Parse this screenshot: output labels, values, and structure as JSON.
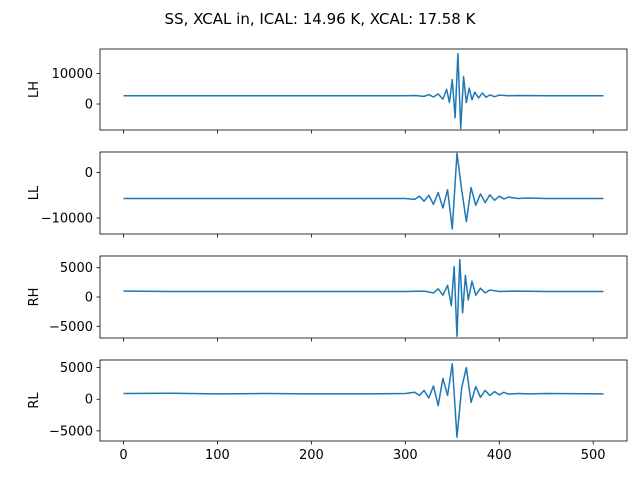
{
  "chart_data": {
    "type": "line",
    "title": "SS, XCAL in, ICAL: 14.96 K, XCAL: 17.58 K",
    "xlim": [
      -25,
      536
    ],
    "xticks": [
      0,
      100,
      200,
      300,
      400,
      500
    ],
    "series_color": "#1f77b4",
    "panels": [
      {
        "name": "LH",
        "ylabel": "LH",
        "ylim": [
          -8500,
          18000
        ],
        "yticks": [
          0,
          10000
        ],
        "x": [
          0,
          50,
          100,
          150,
          200,
          250,
          300,
          310,
          320,
          325,
          330,
          335,
          340,
          344,
          347,
          350,
          353,
          356,
          359,
          362,
          365,
          368,
          371,
          374,
          378,
          382,
          386,
          390,
          395,
          400,
          410,
          420,
          450,
          511
        ],
        "values": [
          2700,
          2700,
          2700,
          2700,
          2700,
          2700,
          2700,
          2800,
          2500,
          3100,
          2300,
          3300,
          1600,
          4800,
          500,
          8000,
          -4500,
          16500,
          -8000,
          9000,
          500,
          5200,
          1400,
          3900,
          2000,
          3600,
          2200,
          3000,
          2400,
          2900,
          2700,
          2800,
          2700,
          2700
        ]
      },
      {
        "name": "LL",
        "ylabel": "LL",
        "ylim": [
          -13500,
          4500
        ],
        "yticks": [
          -10000,
          0
        ],
        "x": [
          0,
          50,
          100,
          150,
          200,
          250,
          300,
          310,
          315,
          320,
          325,
          330,
          335,
          340,
          345,
          350,
          355,
          360,
          365,
          370,
          375,
          380,
          385,
          390,
          395,
          400,
          405,
          410,
          420,
          430,
          450,
          511
        ],
        "values": [
          -5700,
          -5700,
          -5700,
          -5700,
          -5700,
          -5700,
          -5700,
          -5900,
          -5200,
          -6300,
          -5000,
          -7000,
          -4400,
          -7800,
          -3800,
          -12400,
          4200,
          -3800,
          -10800,
          -3300,
          -7200,
          -4700,
          -6600,
          -4900,
          -6100,
          -5200,
          -5800,
          -5400,
          -5700,
          -5600,
          -5700,
          -5700
        ]
      },
      {
        "name": "RH",
        "ylabel": "RH",
        "ylim": [
          -7000,
          7000
        ],
        "yticks": [
          -5000,
          0,
          5000
        ],
        "x": [
          0,
          50,
          100,
          150,
          200,
          250,
          300,
          320,
          330,
          335,
          340,
          345,
          349,
          352,
          355,
          358,
          361,
          364,
          367,
          371,
          375,
          380,
          385,
          390,
          400,
          420,
          450,
          511
        ],
        "values": [
          1000,
          950,
          950,
          950,
          950,
          950,
          950,
          1000,
          700,
          1400,
          300,
          2000,
          -1500,
          5200,
          -6700,
          6400,
          -2700,
          3700,
          -500,
          2700,
          300,
          1500,
          700,
          1200,
          950,
          1000,
          950,
          950
        ]
      },
      {
        "name": "RL",
        "ylabel": "RL",
        "ylim": [
          -6600,
          6200
        ],
        "yticks": [
          -5000,
          0,
          5000
        ],
        "x": [
          0,
          50,
          100,
          150,
          200,
          250,
          300,
          310,
          315,
          320,
          325,
          330,
          335,
          340,
          345,
          350,
          355,
          360,
          365,
          370,
          375,
          380,
          385,
          390,
          395,
          400,
          405,
          410,
          420,
          430,
          450,
          511
        ],
        "values": [
          900,
          950,
          850,
          900,
          850,
          850,
          900,
          1100,
          600,
          1400,
          200,
          2100,
          -1000,
          3300,
          600,
          5600,
          -6000,
          1800,
          5000,
          -500,
          2000,
          300,
          1400,
          600,
          1200,
          700,
          1100,
          800,
          900,
          850,
          900,
          850
        ]
      }
    ]
  }
}
